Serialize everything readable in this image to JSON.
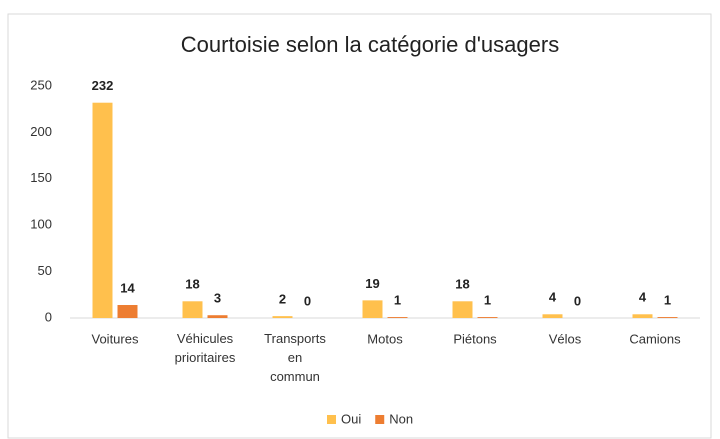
{
  "chart_data": {
    "type": "bar",
    "title": "Courtoisie selon la catégorie d'usagers",
    "categories": [
      "Voitures",
      "Véhicules prioritaires",
      "Transports en commun",
      "Motos",
      "Piétons",
      "Vélos",
      "Camions"
    ],
    "series": [
      {
        "name": "Oui",
        "color": "#ffc04d",
        "values": [
          232,
          18,
          2,
          19,
          18,
          4,
          4
        ]
      },
      {
        "name": "Non",
        "color": "#ed7d31",
        "values": [
          14,
          3,
          0,
          1,
          1,
          0,
          1
        ]
      }
    ],
    "ylim": [
      0,
      250
    ],
    "yticks": [
      0,
      50,
      100,
      150,
      200,
      250
    ],
    "grid": false,
    "legend": "bottom"
  }
}
